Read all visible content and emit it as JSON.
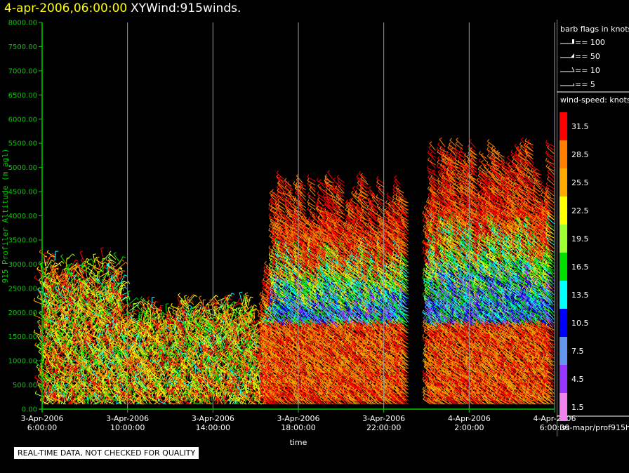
{
  "header": {
    "date": "4-apr-2006,06:00:00",
    "title": "XYWind:915winds."
  },
  "quality_note": "REAL-TIME DATA, NOT CHECKED FOR QUALITY",
  "legend": {
    "barb_title": "barb flags in knots",
    "barb_flags": [
      "== 100",
      "== 50",
      "== 10",
      "== 5"
    ],
    "speed_title": "wind-speed: knots",
    "source_path": "iss-mapr/prof915h"
  },
  "colors": {
    "axis": "#00cc00",
    "grid": "#9a9a9a"
  },
  "chart_data": {
    "type": "scatter",
    "ylabel": "915 Profiler Altitude (m agl)",
    "xlabel": "time",
    "ylim": [
      0,
      8000
    ],
    "yticks": [
      "0.00",
      "500.00",
      "1000.00",
      "1500.00",
      "2000.00",
      "2500.00",
      "3000.00",
      "3500.00",
      "4000.00",
      "4500.00",
      "5000.00",
      "5500.00",
      "6000.00",
      "6500.00",
      "7000.00",
      "7500.00",
      "8000.00"
    ],
    "xlim_hours": [
      0,
      24
    ],
    "xticks": [
      {
        "date": "3-Apr-2006",
        "time": "6:00:00"
      },
      {
        "date": "3-Apr-2006",
        "time": "10:00:00"
      },
      {
        "date": "3-Apr-2006",
        "time": "14:00:00"
      },
      {
        "date": "3-Apr-2006",
        "time": "18:00:00"
      },
      {
        "date": "3-Apr-2006",
        "time": "22:00:00"
      },
      {
        "date": "4-Apr-2006",
        "time": "2:00:00"
      },
      {
        "date": "4-Apr-2006",
        "time": "6:00:00"
      }
    ],
    "colorbar": [
      {
        "value": "31.5",
        "color": "#ff0000"
      },
      {
        "value": "28.5",
        "color": "#ff8000"
      },
      {
        "value": "25.5",
        "color": "#ffaa00"
      },
      {
        "value": "22.5",
        "color": "#ffff00"
      },
      {
        "value": "19.5",
        "color": "#a0ff30"
      },
      {
        "value": "16.5",
        "color": "#00e000"
      },
      {
        "value": "13.5",
        "color": "#00ffff"
      },
      {
        "value": "10.5",
        "color": "#0000ff"
      },
      {
        "value": "7.5",
        "color": "#6495ed"
      },
      {
        "value": "4.5",
        "color": "#9933ff"
      },
      {
        "value": "1.5",
        "color": "#ee82ee"
      }
    ],
    "profiles": [
      {
        "start_h": 0.0,
        "end_h": 3.8,
        "top_m": 3200,
        "regime": "low"
      },
      {
        "start_h": 3.8,
        "end_h": 10.0,
        "top_m": 2300,
        "regime": "low"
      },
      {
        "start_h": 10.0,
        "end_h": 10.5,
        "top_m": 1800,
        "regime": "low"
      },
      {
        "start_h": 10.5,
        "end_h": 11.0,
        "top_m": 2900,
        "regime": "deep"
      },
      {
        "start_h": 11.0,
        "end_h": 17.2,
        "top_m": 4800,
        "regime": "deep"
      },
      {
        "start_h": 18.2,
        "end_h": 24.0,
        "top_m": 5500,
        "regime": "deep"
      }
    ]
  }
}
